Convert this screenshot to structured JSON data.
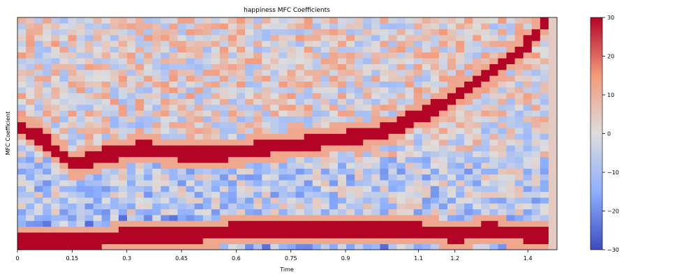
{
  "chart_data": {
    "type": "heatmap",
    "title": "happiness MFC Coefficients",
    "xlabel": "Time",
    "ylabel": "MFC Coefficient",
    "xlim": [
      0,
      1.48
    ],
    "x_ticks": [
      0,
      0.15,
      0.3,
      0.45,
      0.6,
      0.75,
      0.9,
      1.1,
      1.2,
      1.4
    ],
    "x_tick_labels": [
      "0",
      "0.15",
      "0.3",
      "0.45",
      "0.6",
      "0.75",
      "0.9",
      "1.1",
      "1.2",
      "1.4"
    ],
    "colorbar": {
      "range": [
        -30,
        30
      ],
      "ticks": [
        30,
        20,
        10,
        0,
        -10,
        -20,
        -30
      ],
      "tick_labels": [
        "30",
        "20",
        "10",
        "0",
        "−10",
        "−20",
        "−30"
      ],
      "colormap": "coolwarm",
      "low_color": "#3b4cc0",
      "mid_color": "#dddddd",
      "high_color": "#b40426"
    },
    "n_coefficients": 40,
    "n_frames": 64,
    "approx_ridges": [
      {
        "x": [
          0.0,
          0.03,
          0.1,
          0.16,
          0.25,
          0.35,
          0.45,
          0.55,
          0.68,
          0.8,
          0.92,
          1.02,
          1.08,
          1.15,
          1.25,
          1.32,
          1.4,
          1.45
        ],
        "coef": [
          21,
          20,
          17,
          14,
          16,
          17,
          16,
          16,
          17,
          18,
          19,
          20,
          22,
          24,
          28,
          31,
          35,
          39
        ],
        "value": 30
      },
      {
        "x": [
          0.0,
          0.1,
          0.2,
          0.3,
          0.4,
          0.5,
          0.6,
          0.7,
          0.8,
          0.9,
          1.0,
          1.1,
          1.2,
          1.3,
          1.4,
          1.45
        ],
        "coef": [
          1,
          1,
          1,
          2,
          2,
          2,
          3,
          3,
          3,
          3,
          3,
          3,
          2,
          3,
          2,
          2
        ],
        "value": 30
      }
    ]
  }
}
